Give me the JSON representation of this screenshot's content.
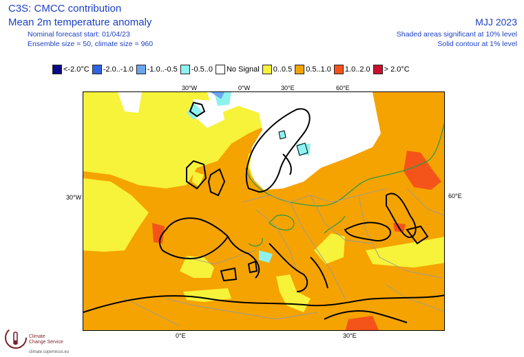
{
  "header": {
    "title": "C3S: CMCC contribution",
    "subtitle": "Mean 2m temperature anomaly",
    "forecast_start": "Nominal forecast start: 01/04/23",
    "ensemble": "Ensemble size = 50, climate size = 960",
    "period": "MJJ 2023",
    "note_shaded": "Shaded areas significant at 10% level",
    "note_contour": "Solid contour at 1% level"
  },
  "legend": [
    {
      "label": "<-2.0°C",
      "color": "#0b0b8a"
    },
    {
      "label": "-2.0..-1.0",
      "color": "#2f63e6"
    },
    {
      "label": "-1.0..-0.5",
      "color": "#6aa6f0"
    },
    {
      "label": "-0.5..0",
      "color": "#8ff2ee"
    },
    {
      "label": "No Signal",
      "color": "#ffffff"
    },
    {
      "label": "0..0.5",
      "color": "#f7f23a"
    },
    {
      "label": "0.5..1.0",
      "color": "#f5a300"
    },
    {
      "label": "1.0..2.0",
      "color": "#f4541a"
    },
    {
      "label": "> 2.0°C",
      "color": "#c8102e"
    }
  ],
  "map": {
    "top_labels": [
      "30°W",
      "0°W",
      "30°E",
      "60°E"
    ],
    "left_label": "30°W",
    "right_label": "60°E",
    "bottom_labels": [
      "0°E",
      "30°E"
    ]
  },
  "footer": {
    "brand_line1": "Climate",
    "brand_line2": "Change Service",
    "url": "climate.copernicus.eu"
  }
}
